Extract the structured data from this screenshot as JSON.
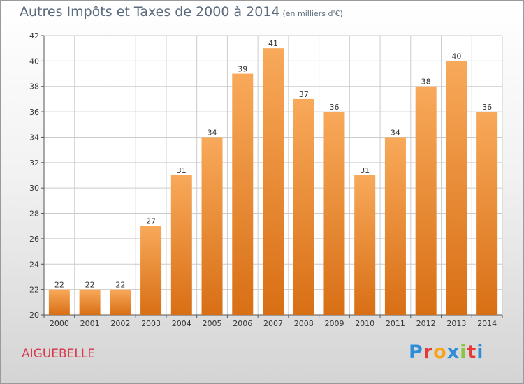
{
  "title": "Autres Impôts et Taxes de 2000 à 2014",
  "unit_note": "(en milliers d'€)",
  "commune": "AIGUEBELLE",
  "logo_text": "Proxiti",
  "colors": {
    "bar_light": "#f8a95a",
    "bar_dark": "#d86f15",
    "grid": "#cccccc",
    "title": "#5b6b7d",
    "commune": "#d8374a",
    "logo": [
      "#2e8fd8",
      "#e53935",
      "#f7a21b",
      "#2e8fd8",
      "#8cc63f",
      "#e53935",
      "#2e8fd8"
    ]
  },
  "chart_data": {
    "type": "bar",
    "categories": [
      "2000",
      "2001",
      "2002",
      "2003",
      "2004",
      "2005",
      "2006",
      "2007",
      "2008",
      "2009",
      "2010",
      "2011",
      "2012",
      "2013",
      "2014"
    ],
    "values": [
      22,
      22,
      22,
      27,
      31,
      34,
      39,
      41,
      37,
      36,
      31,
      34,
      38,
      40,
      36
    ],
    "ylim": [
      20,
      42
    ],
    "yticks": [
      20,
      22,
      24,
      26,
      28,
      30,
      32,
      34,
      36,
      38,
      40,
      42
    ],
    "grid": true,
    "legend": false
  }
}
